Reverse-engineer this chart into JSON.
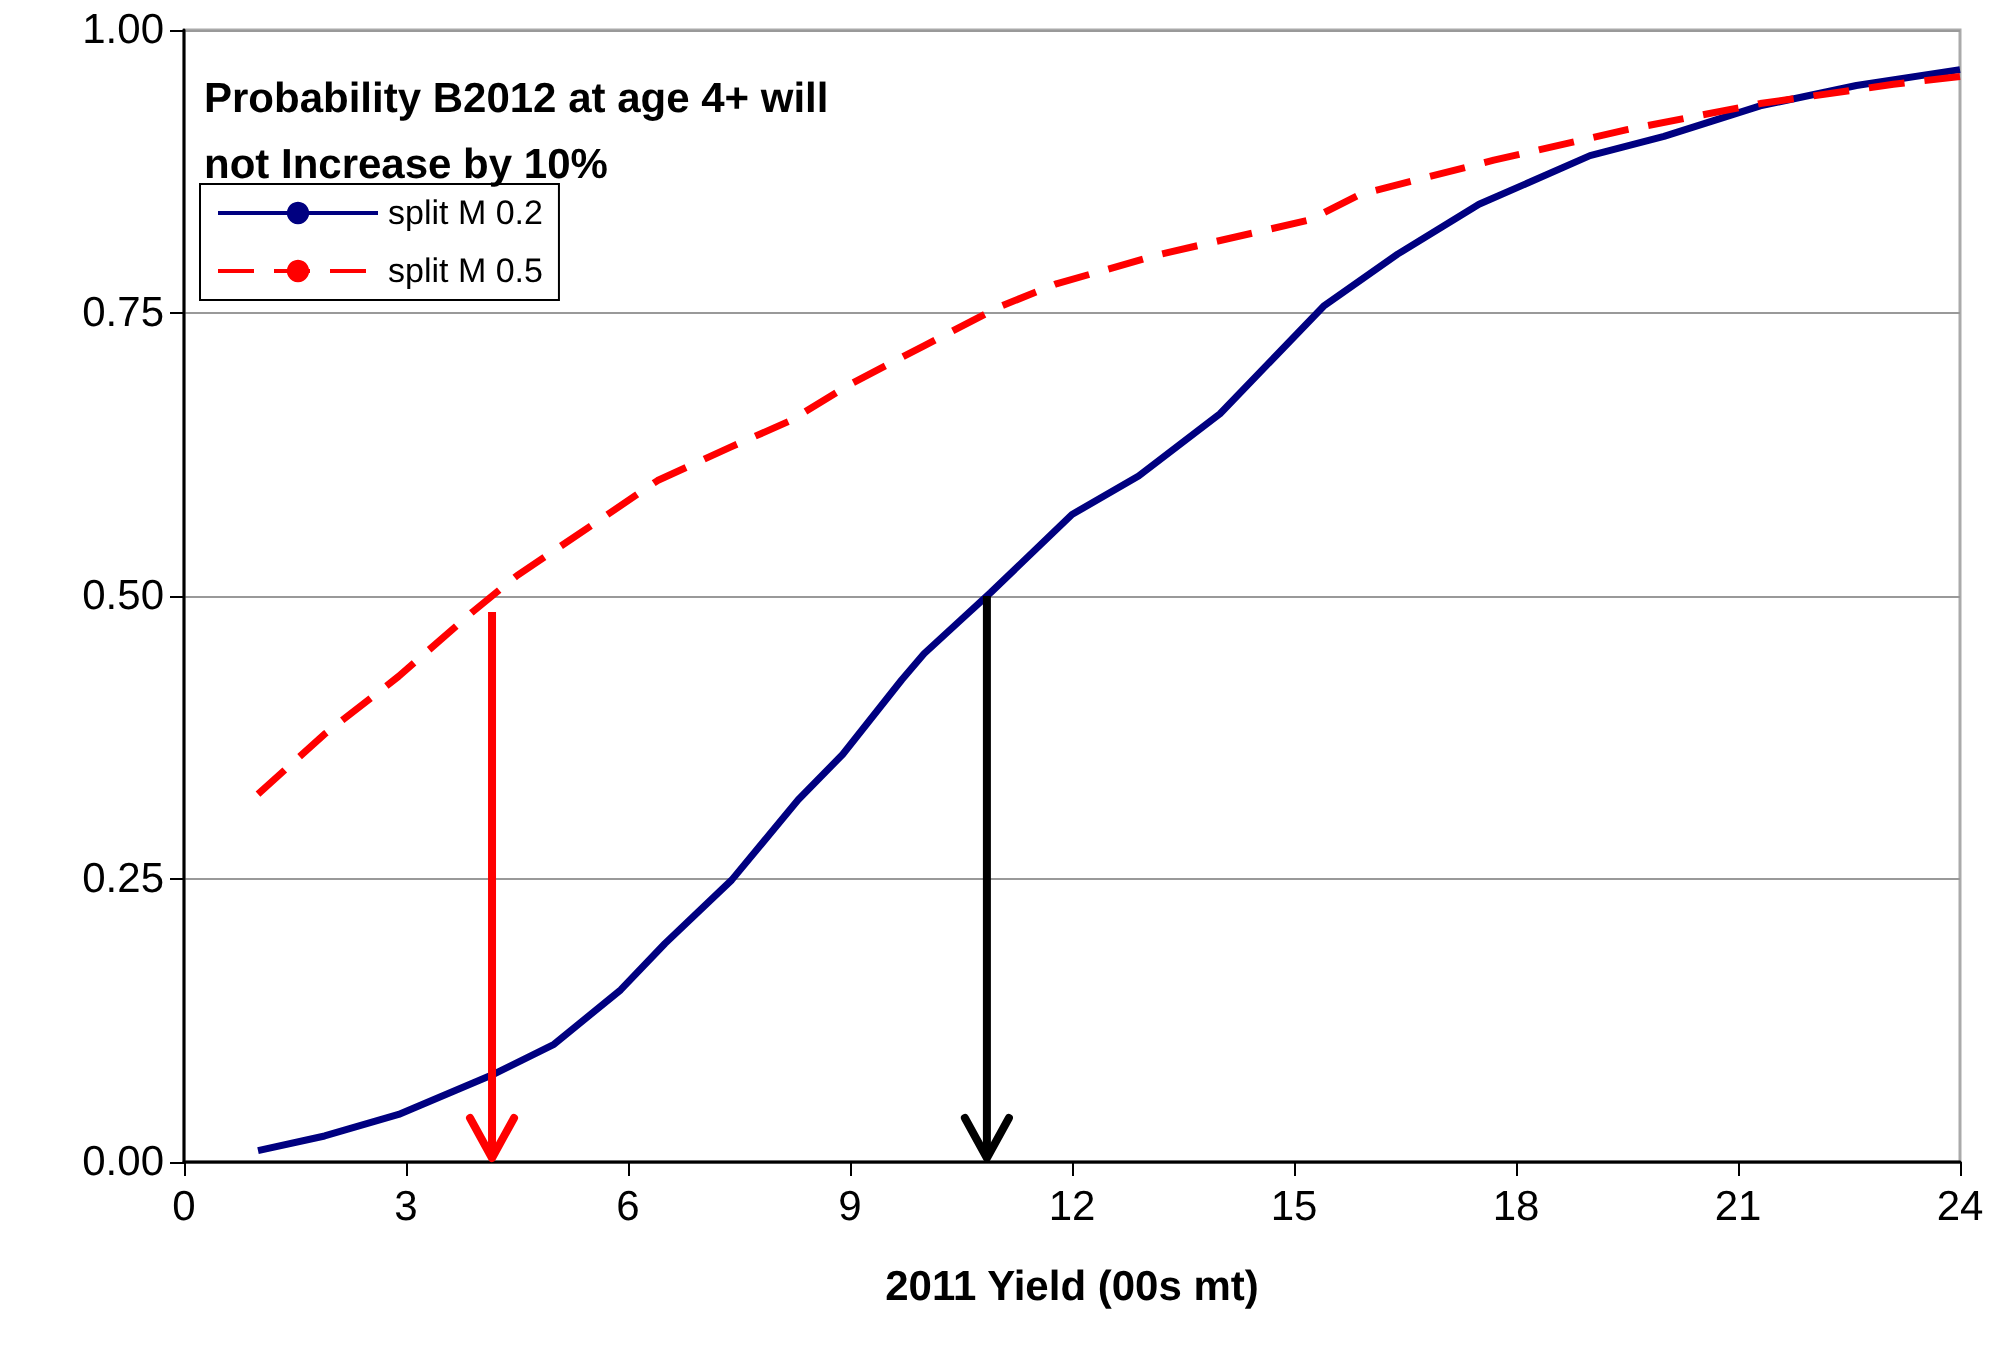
{
  "chart_data": {
    "type": "line",
    "title": "Probability B2012 at age 4+ will not Increase by 10%",
    "xlabel": "2011 Yield (00s mt)",
    "xlim": [
      0,
      24
    ],
    "xticks": [
      0,
      3,
      6,
      9,
      12,
      15,
      18,
      21,
      24
    ],
    "ylim": [
      0,
      1
    ],
    "yticks": [
      {
        "value": 0,
        "label": "0.00"
      },
      {
        "value": 0.25,
        "label": "0.25"
      },
      {
        "value": 0.5,
        "label": "0.50"
      },
      {
        "value": 0.75,
        "label": "0.75"
      },
      {
        "value": 1,
        "label": "1.00"
      }
    ],
    "grid": "y",
    "legend": "top left",
    "marker": "none",
    "series": [
      {
        "name": "split M 0.2",
        "color": "#000080",
        "line_style": "solid",
        "x": [
          1,
          1.9,
          2.9,
          4.2,
          5,
          5.9,
          6.5,
          7.4,
          8.3,
          8.9,
          9.7,
          10,
          10.5,
          10.9,
          12,
          12.9,
          14,
          15.4,
          16.4,
          17.5,
          19,
          20,
          21.3,
          22.6,
          24
        ],
        "values": [
          0.01,
          0.023,
          0.042,
          0.078,
          0.104,
          0.152,
          0.193,
          0.249,
          0.32,
          0.36,
          0.426,
          0.449,
          0.479,
          0.503,
          0.572,
          0.606,
          0.661,
          0.756,
          0.802,
          0.846,
          0.889,
          0.906,
          0.933,
          0.951,
          0.965
        ]
      },
      {
        "name": "split M 0.5",
        "color": "#ff0000",
        "line_style": "dashed",
        "x": [
          1,
          1.9,
          2.9,
          3.9,
          4.5,
          5.5,
          6.4,
          7.4,
          8.2,
          9,
          10,
          11,
          11.8,
          13.2,
          15.2,
          15.9,
          17.7,
          19.5,
          21.3,
          23.1,
          24
        ],
        "values": [
          0.325,
          0.378,
          0.429,
          0.486,
          0.518,
          0.562,
          0.602,
          0.632,
          0.655,
          0.687,
          0.721,
          0.755,
          0.776,
          0.802,
          0.832,
          0.855,
          0.885,
          0.912,
          0.935,
          0.952,
          0.959
        ]
      }
    ]
  }
}
